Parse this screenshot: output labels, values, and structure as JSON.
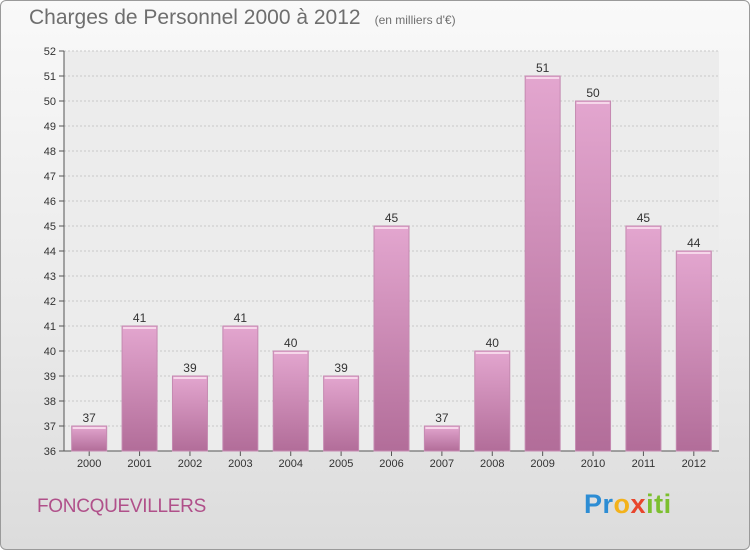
{
  "header": {
    "title": "Charges de Personnel 2000 à 2012",
    "subtitle": "(en milliers d'€)"
  },
  "commune": "FONCQUEVILLERS",
  "logo": {
    "letters": [
      "P",
      "r",
      "o",
      "x",
      "i",
      "t",
      "i"
    ],
    "colors": [
      "#2d8dd4",
      "#2d8dd4",
      "#f3b21b",
      "#e8452c",
      "#7cbf2f",
      "#7cbf2f",
      "#7cbf2f"
    ]
  },
  "chart_data": {
    "type": "bar",
    "title": "Charges de Personnel 2000 à 2012",
    "subtitle": "(en milliers d'€)",
    "categories": [
      "2000",
      "2001",
      "2002",
      "2003",
      "2004",
      "2005",
      "2006",
      "2007",
      "2008",
      "2009",
      "2010",
      "2011",
      "2012"
    ],
    "values": [
      37,
      41,
      39,
      41,
      40,
      39,
      45,
      37,
      40,
      51,
      50,
      45,
      44
    ],
    "ylim": [
      36,
      52
    ],
    "yticks": [
      36,
      37,
      38,
      39,
      40,
      41,
      42,
      43,
      44,
      45,
      46,
      47,
      48,
      49,
      50,
      51,
      52
    ],
    "grid": true,
    "bar_color": "#cc88b5"
  }
}
